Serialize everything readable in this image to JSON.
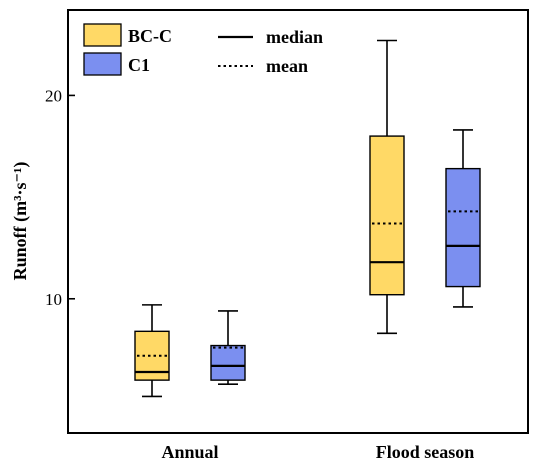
{
  "chart_data": {
    "type": "box",
    "categories": [
      "Annual",
      "Flood season"
    ],
    "ylabel": "Runoff (m³·s⁻¹)",
    "ylim": [
      3.4,
      24.2
    ],
    "yticks": [
      10,
      20
    ],
    "legend_placement": "top-left",
    "legend": {
      "box_entries": [
        "BC-C",
        "C1"
      ],
      "line_entries": [
        {
          "label": "median",
          "style": "solid"
        },
        {
          "label": "mean",
          "style": "dotted"
        }
      ]
    },
    "series": [
      {
        "name": "BC-C",
        "color": "#FFD966",
        "boxes": [
          {
            "category": "Annual",
            "whisker_low": 5.2,
            "q1": 6.0,
            "median": 6.4,
            "mean": 7.2,
            "q3": 8.4,
            "whisker_high": 9.7
          },
          {
            "category": "Flood season",
            "whisker_low": 8.3,
            "q1": 10.2,
            "median": 11.8,
            "mean": 13.7,
            "q3": 18.0,
            "whisker_high": 22.7
          }
        ]
      },
      {
        "name": "C1",
        "color": "#7B8FF0",
        "boxes": [
          {
            "category": "Annual",
            "whisker_low": 5.8,
            "q1": 6.0,
            "median": 6.7,
            "mean": 7.6,
            "q3": 7.7,
            "whisker_high": 9.4
          },
          {
            "category": "Flood season",
            "whisker_low": 9.6,
            "q1": 10.6,
            "median": 12.6,
            "mean": 14.3,
            "q3": 16.4,
            "whisker_high": 18.3
          }
        ]
      }
    ]
  }
}
